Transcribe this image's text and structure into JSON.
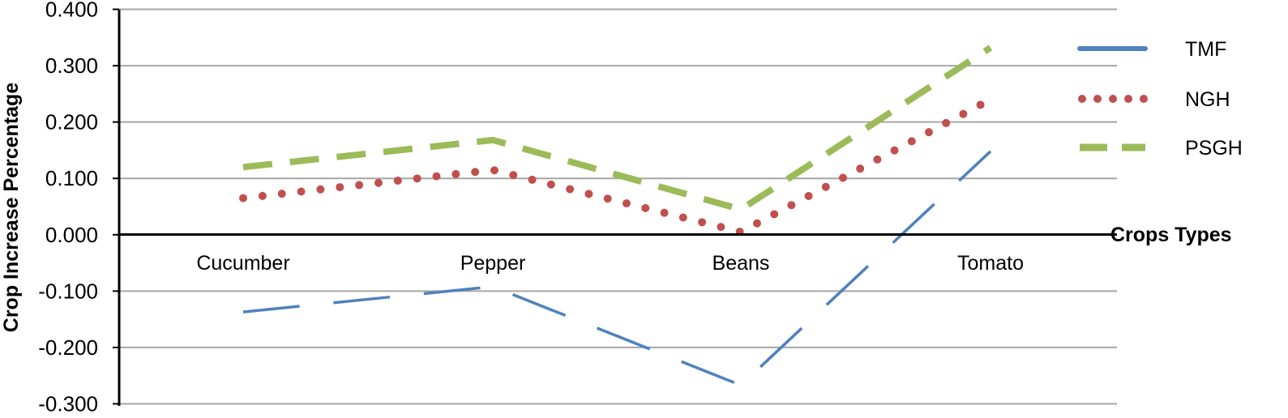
{
  "chart_data": {
    "type": "line",
    "title": "",
    "xlabel": "Crops Types",
    "ylabel": "Crop Increase Percentage",
    "categories": [
      "Cucumber",
      "Pepper",
      "Beans",
      "Tomato"
    ],
    "ylim": [
      -0.3,
      0.4
    ],
    "yticks": [
      "0.400",
      "0.300",
      "0.200",
      "0.100",
      "0.000",
      "-0.100",
      "-0.200",
      "-0.300"
    ],
    "grid": true,
    "legend_position": "right",
    "series": [
      {
        "name": "TMF",
        "values": [
          -0.137,
          -0.092,
          -0.267,
          0.148
        ],
        "color": "#4f81bd",
        "dash": "long-dash"
      },
      {
        "name": "NGH",
        "values": [
          0.065,
          0.115,
          0.005,
          0.24
        ],
        "color": "#c0504d",
        "dash": "dot"
      },
      {
        "name": "PSGH",
        "values": [
          0.12,
          0.168,
          0.045,
          0.332
        ],
        "color": "#9bbb59",
        "dash": "dash"
      }
    ]
  }
}
